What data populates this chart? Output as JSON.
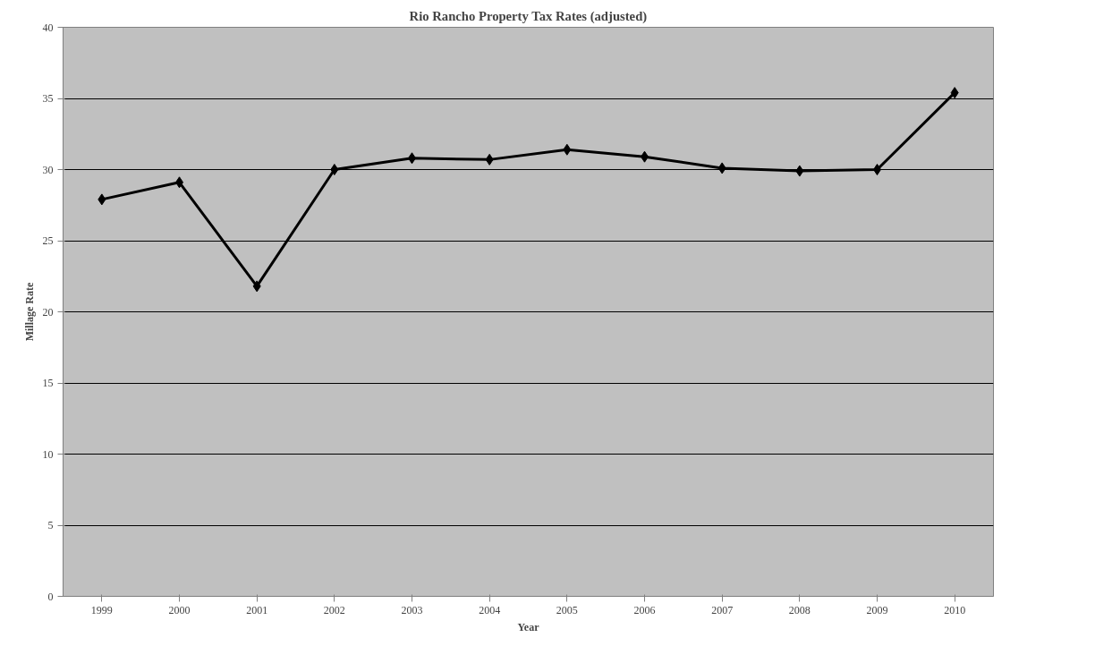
{
  "chart_data": {
    "type": "line",
    "title": "Rio Rancho Property Tax Rates (adjusted)",
    "xlabel": "Year",
    "ylabel": "Millage Rate",
    "categories": [
      "1999",
      "2000",
      "2001",
      "2002",
      "2003",
      "2004",
      "2005",
      "2006",
      "2007",
      "2008",
      "2009",
      "2010"
    ],
    "series": [
      {
        "color": "#000000",
        "values": [
          27.9,
          29.1,
          21.8,
          30.0,
          30.8,
          30.7,
          31.4,
          30.9,
          30.1,
          29.9,
          30.0,
          35.4
        ]
      }
    ],
    "ylim": [
      0,
      40
    ],
    "yticks": [
      0,
      5,
      10,
      15,
      20,
      25,
      30,
      35,
      40
    ],
    "grid": "y",
    "marker": "diamond",
    "line_style": "solid"
  }
}
